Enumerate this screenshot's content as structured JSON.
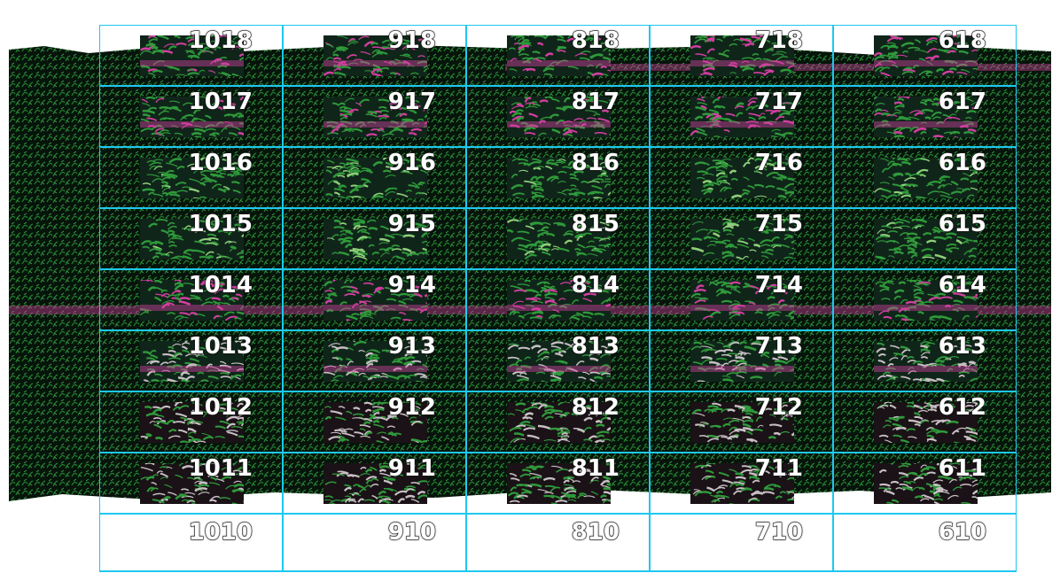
{
  "colors": {
    "grid_line": "#1ec8f0",
    "field_base": "#08150c",
    "crop_green": "#2f9a3a",
    "crop_magenta": "#d23fa0",
    "plot_pale": "#c8c0c4"
  },
  "grid": {
    "columns": 5,
    "rows": 9,
    "labels": [
      [
        "1018",
        "918",
        "818",
        "718",
        "618"
      ],
      [
        "1017",
        "917",
        "817",
        "717",
        "617"
      ],
      [
        "1016",
        "916",
        "816",
        "716",
        "616"
      ],
      [
        "1015",
        "915",
        "815",
        "715",
        "615"
      ],
      [
        "1014",
        "914",
        "814",
        "714",
        "614"
      ],
      [
        "1013",
        "913",
        "813",
        "713",
        "613"
      ],
      [
        "1012",
        "912",
        "812",
        "712",
        "612"
      ],
      [
        "1011",
        "911",
        "811",
        "711",
        "611"
      ],
      [
        "1010",
        "910",
        "810",
        "710",
        "610"
      ]
    ]
  }
}
